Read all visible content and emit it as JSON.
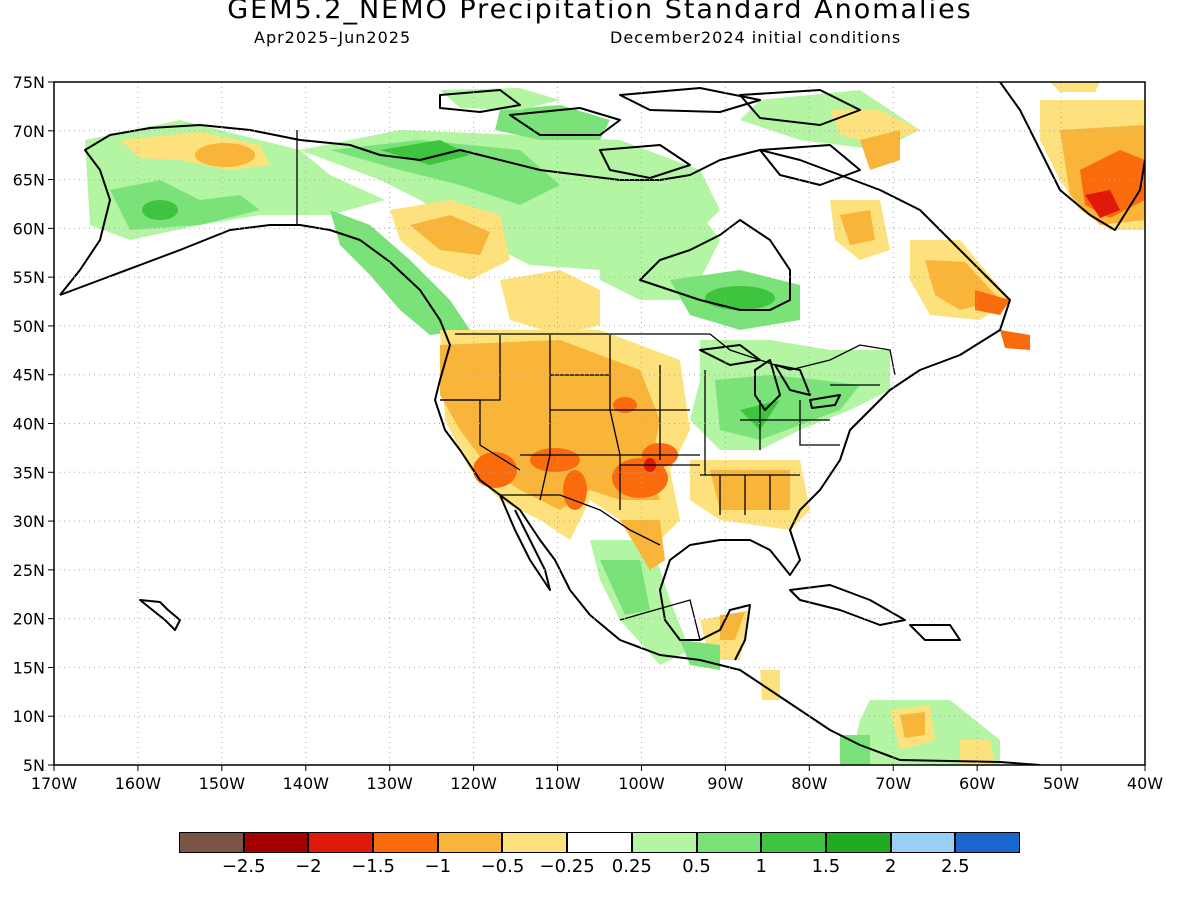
{
  "title": "GEM5.2_NEMO Precipitation Standard Anomalies",
  "subtitle_period": "Apr2025–Jun2025",
  "subtitle_init": "December2024 initial conditions",
  "map": {
    "lat_labels": [
      "75N",
      "70N",
      "65N",
      "60N",
      "55N",
      "50N",
      "45N",
      "40N",
      "35N",
      "30N",
      "25N",
      "20N",
      "15N",
      "10N",
      "5N"
    ],
    "lon_labels": [
      "170W",
      "160W",
      "150W",
      "140W",
      "130W",
      "120W",
      "110W",
      "100W",
      "90W",
      "80W",
      "70W",
      "60W",
      "50W",
      "40W"
    ],
    "grid": "dotted"
  },
  "colorbar": {
    "colors": [
      "#7b5446",
      "#a30000",
      "#e01a0b",
      "#fa6b0d",
      "#f9b43a",
      "#fde17c",
      "#ffffff",
      "#b3f5a3",
      "#7be27a",
      "#3ec43f",
      "#21ab21",
      "#99cff5",
      "#1a66cf"
    ],
    "labels": [
      "−2.5",
      "−2",
      "−1.5",
      "−1",
      "−0.5",
      "−0.25",
      "0.25",
      "0.5",
      "1",
      "1.5",
      "2",
      "2.5"
    ]
  }
}
